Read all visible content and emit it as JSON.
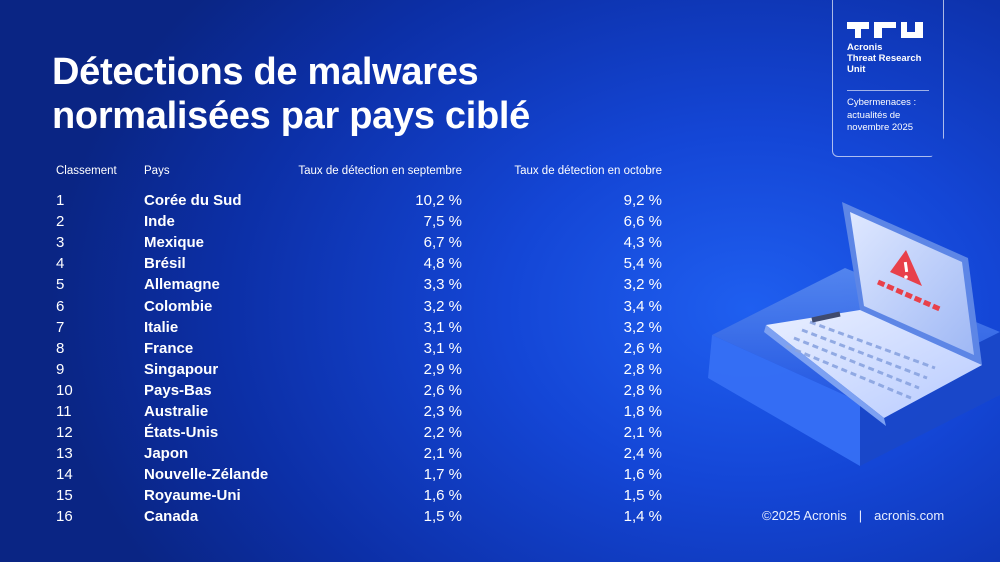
{
  "title": {
    "line1": "Détections de malwares",
    "line2": "normalisées par pays ciblé"
  },
  "table": {
    "headers": {
      "rank": "Classement",
      "country": "Pays",
      "september": "Taux de détection en septembre",
      "october": "Taux de détection en octobre"
    },
    "rows": [
      {
        "rank": "1",
        "country": "Corée du Sud",
        "september": "10,2 %",
        "october": "9,2 %"
      },
      {
        "rank": "2",
        "country": "Inde",
        "september": "7,5 %",
        "october": "6,6 %"
      },
      {
        "rank": "3",
        "country": "Mexique",
        "september": "6,7 %",
        "october": "4,3 %"
      },
      {
        "rank": "4",
        "country": "Brésil",
        "september": "4,8 %",
        "october": "5,4 %"
      },
      {
        "rank": "5",
        "country": "Allemagne",
        "september": "3,3 %",
        "october": "3,2 %"
      },
      {
        "rank": "6",
        "country": "Colombie",
        "september": "3,2 %",
        "october": "3,4 %"
      },
      {
        "rank": "7",
        "country": "Italie",
        "september": "3,1 %",
        "october": "3,2 %"
      },
      {
        "rank": "8",
        "country": "France",
        "september": "3,1 %",
        "october": "2,6 %"
      },
      {
        "rank": "9",
        "country": "Singapour",
        "september": "2,9 %",
        "october": "2,8 %"
      },
      {
        "rank": "10",
        "country": "Pays-Bas",
        "september": "2,6 %",
        "october": "2,8 %"
      },
      {
        "rank": "11",
        "country": "Australie",
        "september": "2,3 %",
        "october": "1,8 %"
      },
      {
        "rank": "12",
        "country": "États-Unis",
        "september": "2,2 %",
        "october": "2,1 %"
      },
      {
        "rank": "13",
        "country": "Japon",
        "september": "2,1 %",
        "october": "2,4 %"
      },
      {
        "rank": "14",
        "country": "Nouvelle-Zélande",
        "september": "1,7 %",
        "october": "1,6 %"
      },
      {
        "rank": "15",
        "country": "Royaume-Uni",
        "september": "1,6 %",
        "october": "1,5 %"
      },
      {
        "rank": "16",
        "country": "Canada",
        "september": "1,5 %",
        "october": "1,4 %"
      }
    ]
  },
  "badge": {
    "org": "Acronis\nThreat Research\nUnit",
    "issue": "Cybermenaces :\nactualités de\nnovembre 2025"
  },
  "icons": {
    "logo": "tru-logo-icon",
    "illustration": "laptop-warning-icon"
  },
  "footer": {
    "copyright": "©2025 Acronis",
    "separator": "|",
    "site": "acronis.com"
  },
  "colors": {
    "background": "#1446d6",
    "warning": "#e8404a",
    "text": "#ffffff"
  }
}
